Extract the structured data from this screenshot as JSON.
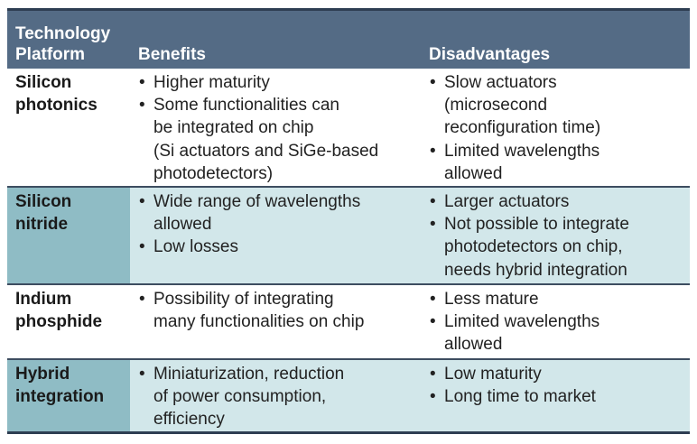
{
  "header": {
    "platform_line1": "Technology",
    "platform_line2": "Platform",
    "benefits": "Benefits",
    "disadvantages": "Disadvantages"
  },
  "rows": [
    {
      "platform_line1": "Silicon",
      "platform_line2": "photonics",
      "benefits": [
        "Higher maturity",
        "Some functionalities can",
        "be integrated on chip",
        "(Si actuators and SiGe-based",
        "photodetectors)"
      ],
      "disadvantages": [
        "Slow actuators",
        "(microsecond",
        "reconfiguration time)",
        "Limited wavelengths",
        "allowed"
      ]
    },
    {
      "platform_line1": "Silicon",
      "platform_line2": "nitride",
      "benefits": [
        "Wide range of wavelengths",
        "allowed",
        "Low losses"
      ],
      "disadvantages": [
        "Larger actuators",
        "Not possible to integrate",
        "photodetectors on chip,",
        "needs hybrid integration"
      ]
    },
    {
      "platform_line1": "Indium",
      "platform_line2": "phosphide",
      "benefits": [
        "Possibility of integrating",
        "many functionalities on chip"
      ],
      "disadvantages": [
        "Less mature",
        "Limited wavelengths",
        "allowed"
      ]
    },
    {
      "platform_line1": "Hybrid",
      "platform_line2": "integration",
      "benefits": [
        "Miniaturization, reduction",
        "of power consumption,",
        "efficiency"
      ],
      "disadvantages": [
        "Low maturity",
        "Long time to market"
      ]
    }
  ],
  "colors": {
    "header_bg": "#546b85",
    "shaded_first_col": "#8fbcc5",
    "shaded_row": "#d2e7ea",
    "rule": "#2e3e52"
  }
}
